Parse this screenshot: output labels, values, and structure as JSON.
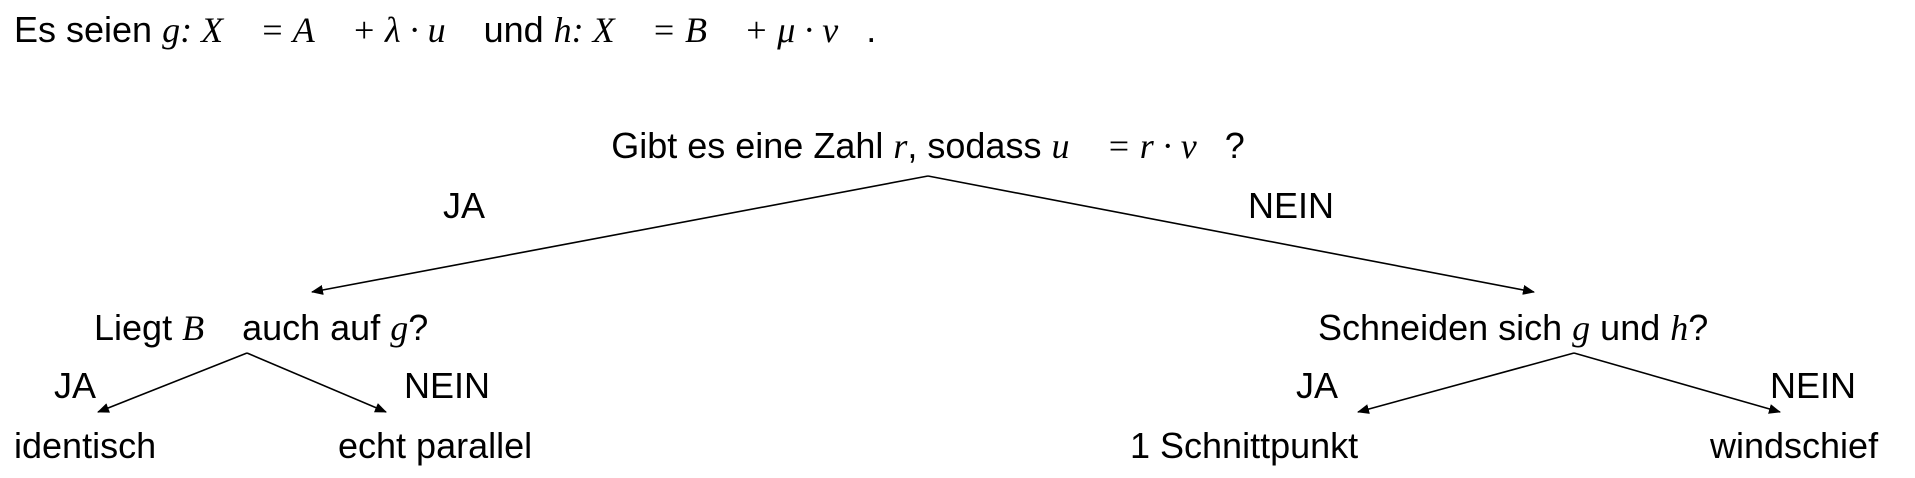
{
  "intro": {
    "prefix": "Es seien ",
    "g_eq": "g: X⃗ = A⃗ + λ · u⃗",
    "middle": " und ",
    "h_eq": "h: X⃗ = B⃗ + μ · v⃗",
    "suffix": "."
  },
  "root": {
    "text_before": "Gibt es eine Zahl ",
    "var": "r",
    "text_mid": ", sodass ",
    "eq": "u⃗ = r · v⃗",
    "text_after": "?"
  },
  "left_question": {
    "before": "Liegt ",
    "var1": "B⃗",
    "mid": " auch auf ",
    "var2": "g",
    "after": "?"
  },
  "right_question": {
    "before": "Schneiden sich ",
    "var1": "g",
    "mid": " und ",
    "var2": "h",
    "after": "?"
  },
  "branch_labels": {
    "root_yes": "JA",
    "root_no": "NEIN",
    "left_yes": "JA",
    "left_no": "NEIN",
    "right_yes": "JA",
    "right_no": "NEIN"
  },
  "outcomes": {
    "identical": "identisch",
    "parallel": "echt parallel",
    "intersection": "1 Schnittpunkt",
    "skew": "windschief"
  },
  "colors": {
    "ink": "#000000",
    "background": "#ffffff"
  }
}
